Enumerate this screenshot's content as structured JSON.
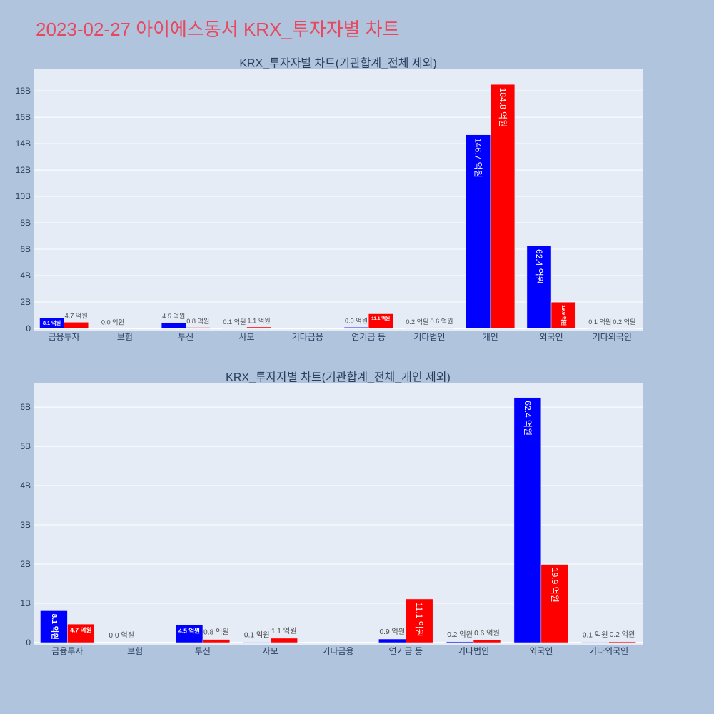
{
  "page": {
    "title": "2023-02-27 아이에스동서 KRX_투자자별 차트"
  },
  "colors": {
    "page_background": "#b0c4de",
    "title": "#e8485e",
    "plot_background": "#e5ecf6",
    "gridline": "#ffffff",
    "axis_text": "#2a3f5f",
    "inside_label": "#ffffff",
    "outside_label": "#4d4d4d"
  },
  "chart_data": [
    {
      "type": "bar",
      "title": "KRX_투자자별 차트(기관합계_전체 제외)",
      "categories": [
        "금융투자",
        "보험",
        "투신",
        "사모",
        "기타금융",
        "연기금 등",
        "기타법인",
        "개인",
        "외국인",
        "기타외국인"
      ],
      "series": [
        {
          "color": "#0000ff",
          "values": [
            0.81,
            0.0,
            0.45,
            0.01,
            null,
            0.09,
            0.02,
            14.67,
            6.24,
            0.01
          ],
          "labels": [
            "8.1 억원",
            "0.0 억원",
            "4.5 억원",
            "0.1 억원",
            null,
            "0.9 억원",
            "0.2 억원",
            "146.7 억원",
            "62.4 억원",
            "0.1 억원"
          ]
        },
        {
          "color": "#ff0000",
          "values": [
            0.47,
            null,
            0.08,
            0.11,
            null,
            1.11,
            0.06,
            18.48,
            1.99,
            0.02
          ],
          "labels": [
            "4.7 억원",
            null,
            "0.8 억원",
            "1.1 억원",
            null,
            "11.1 억원",
            "0.6 억원",
            "184.8 억원",
            "19.9 억원",
            "0.2 억원"
          ]
        }
      ],
      "ylim": [
        -0.16,
        19.68
      ],
      "yticks": [
        0,
        2,
        4,
        6,
        8,
        10,
        12,
        14,
        16,
        18
      ],
      "ytick_labels": [
        "0",
        "2B",
        "4B",
        "6B",
        "8B",
        "10B",
        "12B",
        "14B",
        "16B",
        "18B"
      ],
      "grid": true,
      "showlegend": false
    },
    {
      "type": "bar",
      "title": "KRX_투자자별 차트(기관합계_전체_개인 제외)",
      "categories": [
        "금융투자",
        "보험",
        "투신",
        "사모",
        "기타금융",
        "연기금 등",
        "기타법인",
        "외국인",
        "기타외국인"
      ],
      "series": [
        {
          "color": "#0000ff",
          "values": [
            0.81,
            0.0,
            0.45,
            0.01,
            null,
            0.09,
            0.02,
            6.24,
            0.01
          ],
          "labels": [
            "8.1 억원",
            "0.0 억원",
            "4.5 억원",
            "0.1 억원",
            null,
            "0.9 억원",
            "0.2 억원",
            "62.4 억원",
            "0.1 억원"
          ]
        },
        {
          "color": "#ff0000",
          "values": [
            0.47,
            null,
            0.08,
            0.11,
            null,
            1.11,
            0.06,
            1.99,
            0.02
          ],
          "labels": [
            "4.7 억원",
            null,
            "0.8 억원",
            "1.1 억원",
            null,
            "11.1 억원",
            "0.6 억원",
            "19.9 억원",
            "0.2 억원"
          ]
        }
      ],
      "ylim": [
        -0.055,
        6.62
      ],
      "yticks": [
        0,
        1,
        2,
        3,
        4,
        5,
        6
      ],
      "ytick_labels": [
        "0",
        "1B",
        "2B",
        "3B",
        "4B",
        "5B",
        "6B"
      ],
      "grid": true,
      "showlegend": false
    }
  ]
}
